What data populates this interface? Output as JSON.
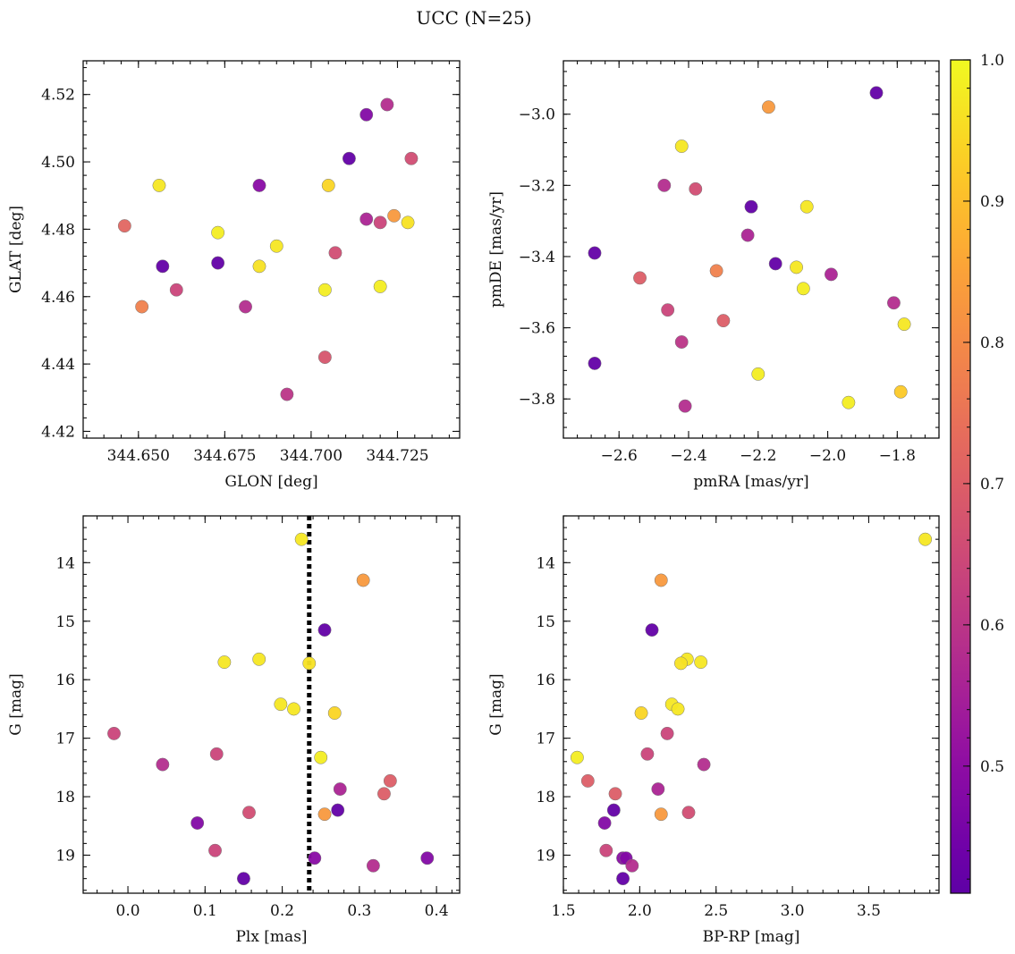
{
  "figure": {
    "title": "UCC (N=25)"
  },
  "colorbar": {
    "range": [
      0.41,
      1.0
    ],
    "ticks": [
      0.5,
      0.6,
      0.7,
      0.8,
      0.9,
      1.0
    ],
    "tick_labels": [
      "0.5",
      "0.6",
      "0.7",
      "0.8",
      "0.9",
      "1.0"
    ],
    "colormap": "plasma"
  },
  "chart_data": [
    {
      "type": "scatter",
      "xlabel": "GLON [deg]",
      "ylabel": "GLAT [deg]",
      "xlim": [
        344.634,
        344.743
      ],
      "ylim": [
        4.418,
        4.53
      ],
      "xticks": [
        344.65,
        344.675,
        344.7,
        344.725
      ],
      "xtick_labels": [
        "344.650",
        "344.675",
        "344.700",
        "344.725"
      ],
      "yticks": [
        4.42,
        4.44,
        4.46,
        4.48,
        4.5,
        4.52
      ],
      "ytick_labels": [
        "4.42",
        "4.44",
        "4.46",
        "4.48",
        "4.50",
        "4.52"
      ],
      "points": [
        {
          "x": 344.646,
          "y": 4.481,
          "c": 0.72
        },
        {
          "x": 344.651,
          "y": 4.457,
          "c": 0.78
        },
        {
          "x": 344.656,
          "y": 4.493,
          "c": 0.97
        },
        {
          "x": 344.657,
          "y": 4.469,
          "c": 0.42
        },
        {
          "x": 344.661,
          "y": 4.462,
          "c": 0.64
        },
        {
          "x": 344.673,
          "y": 4.479,
          "c": 0.98
        },
        {
          "x": 344.673,
          "y": 4.47,
          "c": 0.42
        },
        {
          "x": 344.681,
          "y": 4.457,
          "c": 0.58
        },
        {
          "x": 344.685,
          "y": 4.493,
          "c": 0.49
        },
        {
          "x": 344.685,
          "y": 4.469,
          "c": 0.96
        },
        {
          "x": 344.69,
          "y": 4.475,
          "c": 0.97
        },
        {
          "x": 344.693,
          "y": 4.431,
          "c": 0.6
        },
        {
          "x": 344.704,
          "y": 4.442,
          "c": 0.68
        },
        {
          "x": 344.704,
          "y": 4.462,
          "c": 0.98
        },
        {
          "x": 344.705,
          "y": 4.493,
          "c": 0.94
        },
        {
          "x": 344.707,
          "y": 4.473,
          "c": 0.66
        },
        {
          "x": 344.711,
          "y": 4.501,
          "c": 0.42
        },
        {
          "x": 344.716,
          "y": 4.483,
          "c": 0.56
        },
        {
          "x": 344.716,
          "y": 4.514,
          "c": 0.48
        },
        {
          "x": 344.72,
          "y": 4.482,
          "c": 0.64
        },
        {
          "x": 344.72,
          "y": 4.463,
          "c": 0.98
        },
        {
          "x": 344.722,
          "y": 4.517,
          "c": 0.58
        },
        {
          "x": 344.724,
          "y": 4.484,
          "c": 0.83
        },
        {
          "x": 344.728,
          "y": 4.482,
          "c": 0.96
        },
        {
          "x": 344.729,
          "y": 4.501,
          "c": 0.66
        }
      ]
    },
    {
      "type": "scatter",
      "xlabel": "pmRA [mas/yr]",
      "ylabel": "pmDE [mas/yr]",
      "xlim": [
        -2.76,
        -1.68
      ],
      "ylim": [
        -3.91,
        -2.85
      ],
      "xticks": [
        -2.6,
        -2.4,
        -2.2,
        -2.0,
        -1.8
      ],
      "xtick_labels": [
        "−2.6",
        "−2.4",
        "−2.2",
        "−2.0",
        "−1.8"
      ],
      "yticks": [
        -3.8,
        -3.6,
        -3.4,
        -3.2,
        -3.0
      ],
      "ytick_labels": [
        "−3.8",
        "−3.6",
        "−3.4",
        "−3.2",
        "−3.0"
      ],
      "points": [
        {
          "x": -2.67,
          "y": -3.39,
          "c": 0.42
        },
        {
          "x": -2.67,
          "y": -3.7,
          "c": 0.42
        },
        {
          "x": -2.54,
          "y": -3.46,
          "c": 0.7
        },
        {
          "x": -2.47,
          "y": -3.2,
          "c": 0.58
        },
        {
          "x": -2.46,
          "y": -3.55,
          "c": 0.64
        },
        {
          "x": -2.42,
          "y": -3.09,
          "c": 0.97
        },
        {
          "x": -2.42,
          "y": -3.64,
          "c": 0.6
        },
        {
          "x": -2.41,
          "y": -3.82,
          "c": 0.58
        },
        {
          "x": -2.38,
          "y": -3.21,
          "c": 0.66
        },
        {
          "x": -2.32,
          "y": -3.44,
          "c": 0.78
        },
        {
          "x": -2.3,
          "y": -3.58,
          "c": 0.7
        },
        {
          "x": -2.23,
          "y": -3.34,
          "c": 0.56
        },
        {
          "x": -2.22,
          "y": -3.26,
          "c": 0.42
        },
        {
          "x": -2.2,
          "y": -3.73,
          "c": 0.98
        },
        {
          "x": -2.17,
          "y": -2.98,
          "c": 0.83
        },
        {
          "x": -2.15,
          "y": -3.42,
          "c": 0.42
        },
        {
          "x": -2.09,
          "y": -3.43,
          "c": 0.97
        },
        {
          "x": -2.07,
          "y": -3.49,
          "c": 0.98
        },
        {
          "x": -2.06,
          "y": -3.26,
          "c": 0.97
        },
        {
          "x": -1.99,
          "y": -3.45,
          "c": 0.56
        },
        {
          "x": -1.94,
          "y": -3.81,
          "c": 0.98
        },
        {
          "x": -1.86,
          "y": -2.94,
          "c": 0.42
        },
        {
          "x": -1.81,
          "y": -3.53,
          "c": 0.58
        },
        {
          "x": -1.79,
          "y": -3.78,
          "c": 0.92
        },
        {
          "x": -1.78,
          "y": -3.59,
          "c": 0.97
        }
      ]
    },
    {
      "type": "scatter",
      "xlabel": "Plx [mas]",
      "ylabel": "G [mag]",
      "xlim": [
        -0.058,
        0.43
      ],
      "ylim": [
        19.65,
        13.2
      ],
      "y_inverted": true,
      "xticks": [
        0.0,
        0.1,
        0.2,
        0.3,
        0.4
      ],
      "xtick_labels": [
        "0.0",
        "0.1",
        "0.2",
        "0.3",
        "0.4"
      ],
      "yticks": [
        14,
        15,
        16,
        17,
        18,
        19
      ],
      "ytick_labels": [
        "14",
        "15",
        "16",
        "17",
        "18",
        "19"
      ],
      "vline": {
        "x": 0.235,
        "style": "dotted"
      },
      "points": [
        {
          "x": 0.225,
          "y": 13.6,
          "c": 0.97
        },
        {
          "x": 0.305,
          "y": 14.3,
          "c": 0.83
        },
        {
          "x": 0.255,
          "y": 15.15,
          "c": 0.42
        },
        {
          "x": 0.125,
          "y": 15.7,
          "c": 0.97
        },
        {
          "x": 0.17,
          "y": 15.65,
          "c": 0.97
        },
        {
          "x": 0.235,
          "y": 15.72,
          "c": 0.96
        },
        {
          "x": 0.198,
          "y": 16.42,
          "c": 0.97
        },
        {
          "x": 0.215,
          "y": 16.5,
          "c": 0.97
        },
        {
          "x": 0.268,
          "y": 16.57,
          "c": 0.94
        },
        {
          "x": -0.018,
          "y": 16.92,
          "c": 0.64
        },
        {
          "x": 0.115,
          "y": 17.27,
          "c": 0.64
        },
        {
          "x": 0.25,
          "y": 17.33,
          "c": 0.98
        },
        {
          "x": 0.045,
          "y": 17.45,
          "c": 0.58
        },
        {
          "x": 0.34,
          "y": 17.73,
          "c": 0.7
        },
        {
          "x": 0.275,
          "y": 17.87,
          "c": 0.56
        },
        {
          "x": 0.332,
          "y": 17.95,
          "c": 0.7
        },
        {
          "x": 0.272,
          "y": 18.23,
          "c": 0.42
        },
        {
          "x": 0.157,
          "y": 18.27,
          "c": 0.66
        },
        {
          "x": 0.255,
          "y": 18.3,
          "c": 0.83
        },
        {
          "x": 0.09,
          "y": 18.45,
          "c": 0.48
        },
        {
          "x": 0.113,
          "y": 18.92,
          "c": 0.64
        },
        {
          "x": 0.242,
          "y": 19.05,
          "c": 0.49
        },
        {
          "x": 0.388,
          "y": 19.05,
          "c": 0.48
        },
        {
          "x": 0.318,
          "y": 19.18,
          "c": 0.58
        },
        {
          "x": 0.15,
          "y": 19.4,
          "c": 0.42
        }
      ]
    },
    {
      "type": "scatter",
      "xlabel": "BP-RP [mag]",
      "ylabel": "G [mag]",
      "xlim": [
        1.5,
        3.96
      ],
      "ylim": [
        19.65,
        13.2
      ],
      "y_inverted": true,
      "xticks": [
        1.5,
        2.0,
        2.5,
        3.0,
        3.5
      ],
      "xtick_labels": [
        "1.5",
        "2.0",
        "2.5",
        "3.0",
        "3.5"
      ],
      "yticks": [
        14,
        15,
        16,
        17,
        18,
        19
      ],
      "ytick_labels": [
        "14",
        "15",
        "16",
        "17",
        "18",
        "19"
      ],
      "points": [
        {
          "x": 3.87,
          "y": 13.6,
          "c": 0.97
        },
        {
          "x": 2.14,
          "y": 14.3,
          "c": 0.83
        },
        {
          "x": 2.08,
          "y": 15.15,
          "c": 0.42
        },
        {
          "x": 2.4,
          "y": 15.7,
          "c": 0.97
        },
        {
          "x": 2.31,
          "y": 15.65,
          "c": 0.97
        },
        {
          "x": 2.27,
          "y": 15.72,
          "c": 0.96
        },
        {
          "x": 2.21,
          "y": 16.42,
          "c": 0.97
        },
        {
          "x": 2.25,
          "y": 16.5,
          "c": 0.97
        },
        {
          "x": 2.01,
          "y": 16.57,
          "c": 0.94
        },
        {
          "x": 2.18,
          "y": 16.92,
          "c": 0.64
        },
        {
          "x": 2.05,
          "y": 17.27,
          "c": 0.64
        },
        {
          "x": 1.59,
          "y": 17.33,
          "c": 0.98
        },
        {
          "x": 2.42,
          "y": 17.45,
          "c": 0.58
        },
        {
          "x": 1.66,
          "y": 17.73,
          "c": 0.7
        },
        {
          "x": 2.12,
          "y": 17.87,
          "c": 0.56
        },
        {
          "x": 1.84,
          "y": 17.95,
          "c": 0.7
        },
        {
          "x": 1.83,
          "y": 18.23,
          "c": 0.42
        },
        {
          "x": 2.32,
          "y": 18.27,
          "c": 0.66
        },
        {
          "x": 2.14,
          "y": 18.3,
          "c": 0.83
        },
        {
          "x": 1.77,
          "y": 18.45,
          "c": 0.48
        },
        {
          "x": 1.78,
          "y": 18.92,
          "c": 0.64
        },
        {
          "x": 1.89,
          "y": 19.05,
          "c": 0.49
        },
        {
          "x": 1.91,
          "y": 19.05,
          "c": 0.48
        },
        {
          "x": 1.95,
          "y": 19.18,
          "c": 0.58
        },
        {
          "x": 1.89,
          "y": 19.4,
          "c": 0.42
        }
      ]
    }
  ]
}
